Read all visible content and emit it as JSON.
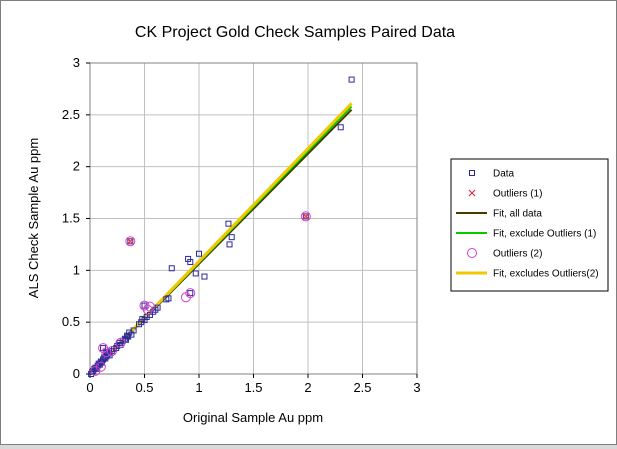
{
  "chart_data": {
    "type": "scatter",
    "title": "CK Project Gold Check Samples Paired Data",
    "xlabel": "Original Sample Au ppm",
    "ylabel": "ALS Check Sample Au ppm",
    "xlim": [
      0,
      3
    ],
    "ylim": [
      0,
      3
    ],
    "xticks": [
      "0",
      "0.5",
      "1",
      "1.5",
      "2",
      "2.5",
      "3"
    ],
    "yticks": [
      "0",
      "0.5",
      "1",
      "1.5",
      "2",
      "2.5",
      "3"
    ],
    "grid": true,
    "legend_position": "right",
    "series": [
      {
        "name": "Data",
        "kind": "markers",
        "marker": "square",
        "color": "#2a2a9a",
        "x": [
          0.01,
          0.02,
          0.03,
          0.04,
          0.05,
          0.06,
          0.07,
          0.08,
          0.09,
          0.1,
          0.11,
          0.12,
          0.13,
          0.14,
          0.15,
          0.16,
          0.17,
          0.18,
          0.2,
          0.22,
          0.24,
          0.25,
          0.27,
          0.28,
          0.3,
          0.32,
          0.33,
          0.34,
          0.35,
          0.36,
          0.38,
          0.4,
          0.45,
          0.47,
          0.48,
          0.5,
          0.52,
          0.55,
          0.58,
          0.6,
          0.62,
          0.7,
          0.72,
          0.75,
          0.9,
          0.92,
          0.97,
          1.0,
          1.05,
          1.27,
          1.28,
          1.3,
          1.98,
          2.3,
          2.4,
          0.37,
          0.5,
          0.92,
          0.12,
          0.15
        ],
        "y": [
          0.0,
          0.02,
          0.03,
          0.05,
          0.06,
          0.05,
          0.08,
          0.1,
          0.09,
          0.12,
          0.11,
          0.14,
          0.16,
          0.15,
          0.17,
          0.19,
          0.2,
          0.18,
          0.22,
          0.24,
          0.25,
          0.27,
          0.3,
          0.28,
          0.32,
          0.34,
          0.33,
          0.37,
          0.36,
          0.4,
          0.38,
          0.42,
          0.48,
          0.5,
          0.53,
          0.52,
          0.55,
          0.57,
          0.6,
          0.62,
          0.64,
          0.72,
          0.73,
          1.02,
          1.11,
          1.08,
          0.97,
          1.16,
          0.94,
          1.45,
          1.25,
          1.32,
          1.52,
          2.38,
          2.84,
          1.28,
          0.66,
          0.78,
          0.25,
          0.21
        ]
      },
      {
        "name": "Outliers (1)",
        "kind": "markers",
        "marker": "x",
        "color": "#e0304a",
        "x": [
          0.37,
          1.98
        ],
        "y": [
          1.28,
          1.52
        ]
      },
      {
        "name": "Fit, all data",
        "kind": "line",
        "color": "#4a3a00",
        "x": [
          0,
          2.4
        ],
        "y": [
          0,
          2.55
        ]
      },
      {
        "name": "Fit, exclude Outliers (1)",
        "kind": "line",
        "color": "#00cc00",
        "x": [
          0,
          2.4
        ],
        "y": [
          0,
          2.58
        ]
      },
      {
        "name": "Outliers (2)",
        "kind": "markers",
        "marker": "circle",
        "color": "#d040d0",
        "x": [
          0.37,
          1.98,
          0.5,
          0.53,
          0.55,
          0.88,
          0.92,
          0.12,
          0.15,
          0.28,
          0.2,
          0.05,
          0.1
        ],
        "y": [
          1.28,
          1.52,
          0.66,
          0.62,
          0.65,
          0.74,
          0.78,
          0.25,
          0.21,
          0.3,
          0.22,
          0.03,
          0.07
        ]
      },
      {
        "name": "Fit, excludes Outliers(2)",
        "kind": "line",
        "color": "#f0c800",
        "x": [
          0,
          2.4
        ],
        "y": [
          0,
          2.61
        ]
      }
    ]
  }
}
